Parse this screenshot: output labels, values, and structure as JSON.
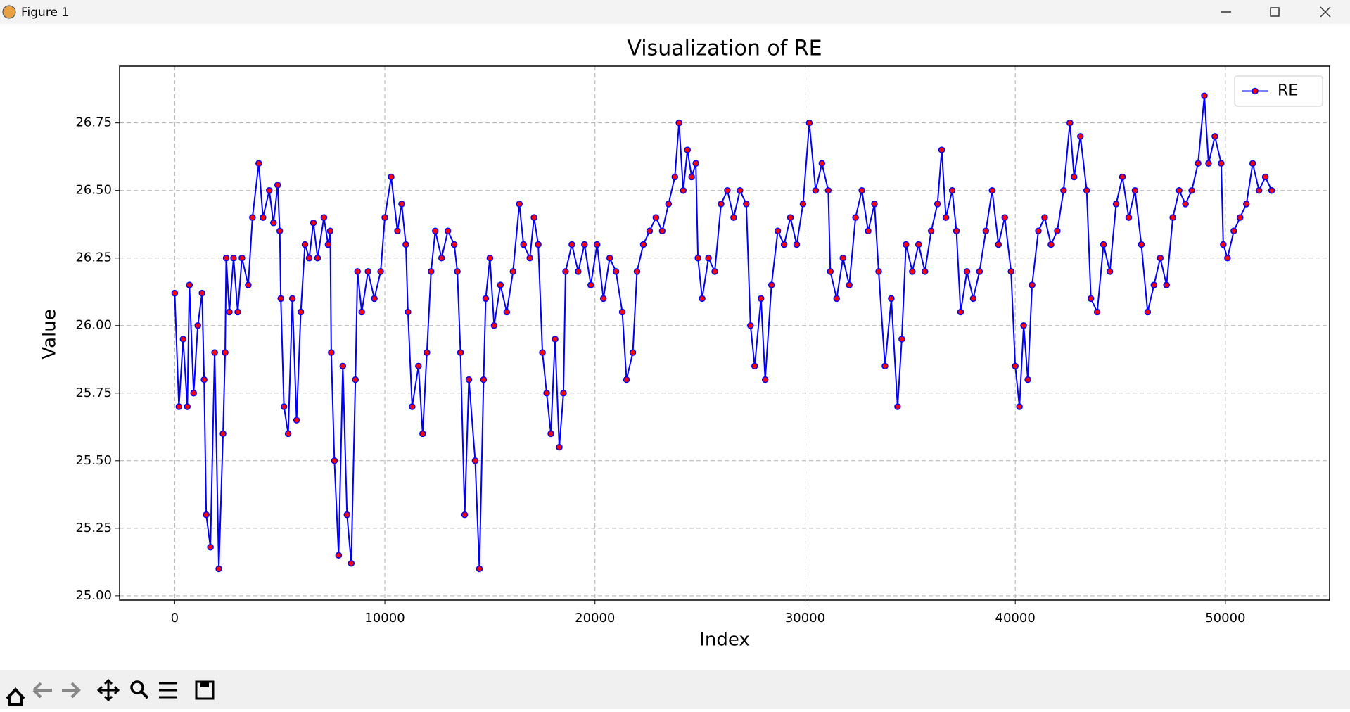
{
  "window": {
    "title": "Figure 1"
  },
  "chart_data": {
    "type": "line",
    "title": "Visualization of RE",
    "x_label": "Index",
    "y_label": "Value",
    "x": [
      0,
      200,
      400,
      600,
      700,
      900,
      1100,
      1300,
      1400,
      1500,
      1700,
      1900,
      2100,
      2300,
      2400,
      2450,
      2600,
      2800,
      3000,
      3200,
      3500,
      3700,
      4000,
      4200,
      4500,
      4700,
      4900,
      5000,
      5050,
      5200,
      5400,
      5600,
      5800,
      6000,
      6200,
      6400,
      6600,
      6800,
      7100,
      7300,
      7400,
      7450,
      7600,
      7800,
      8000,
      8200,
      8400,
      8600,
      8700,
      8900,
      9200,
      9500,
      9800,
      10000,
      10300,
      10600,
      10800,
      11000,
      11100,
      11300,
      11600,
      11800,
      12000,
      12200,
      12400,
      12700,
      13000,
      13300,
      13450,
      13600,
      13800,
      14000,
      14300,
      14500,
      14700,
      14800,
      15000,
      15200,
      15500,
      15800,
      16100,
      16400,
      16600,
      16900,
      17100,
      17300,
      17500,
      17700,
      17900,
      18100,
      18300,
      18500,
      18600,
      18900,
      19200,
      19500,
      19800,
      20100,
      20400,
      20700,
      21000,
      21300,
      21500,
      21800,
      22000,
      22300,
      22600,
      22900,
      23200,
      23500,
      23800,
      24000,
      24200,
      24400,
      24600,
      24800,
      24900,
      25100,
      25400,
      25700,
      26000,
      26300,
      26600,
      26900,
      27200,
      27400,
      27600,
      27900,
      28100,
      28400,
      28700,
      29000,
      29300,
      29600,
      29900,
      30200,
      30500,
      30800,
      31100,
      31200,
      31500,
      31800,
      32100,
      32400,
      32700,
      33000,
      33300,
      33500,
      33800,
      34100,
      34400,
      34600,
      34800,
      35100,
      35400,
      35700,
      36000,
      36300,
      36500,
      36700,
      37000,
      37200,
      37400,
      37700,
      38000,
      38300,
      38600,
      38900,
      39200,
      39500,
      39800,
      40000,
      40200,
      40400,
      40600,
      40800,
      41100,
      41400,
      41700,
      42000,
      42300,
      42600,
      42800,
      43100,
      43400,
      43600,
      43900,
      44200,
      44500,
      44800,
      45100,
      45400,
      45700,
      46000,
      46300,
      46600,
      46900,
      47200,
      47500,
      47800,
      48100,
      48400,
      48700,
      49000,
      49200,
      49500,
      49800,
      49900,
      50100,
      50400,
      50700,
      51000,
      51300,
      51600,
      51900,
      52200
    ],
    "series": [
      {
        "name": "RE",
        "color": "#0000ff",
        "marker_color": "#ff0000",
        "values": [
          26.12,
          25.7,
          25.95,
          25.7,
          26.15,
          25.75,
          26.0,
          26.12,
          25.8,
          25.3,
          25.18,
          25.9,
          25.1,
          25.6,
          25.9,
          26.25,
          26.05,
          26.25,
          26.05,
          26.25,
          26.15,
          26.4,
          26.6,
          26.4,
          26.5,
          26.38,
          26.52,
          26.35,
          26.1,
          25.7,
          25.6,
          26.1,
          25.65,
          26.05,
          26.3,
          26.25,
          26.38,
          26.25,
          26.4,
          26.3,
          26.35,
          25.9,
          25.5,
          25.15,
          25.85,
          25.3,
          25.12,
          25.8,
          26.2,
          26.05,
          26.2,
          26.1,
          26.2,
          26.4,
          26.55,
          26.35,
          26.45,
          26.3,
          26.05,
          25.7,
          25.85,
          25.6,
          25.9,
          26.2,
          26.35,
          26.25,
          26.35,
          26.3,
          26.2,
          25.9,
          25.3,
          25.8,
          25.5,
          25.1,
          25.8,
          26.1,
          26.25,
          26.0,
          26.15,
          26.05,
          26.2,
          26.45,
          26.3,
          26.25,
          26.4,
          26.3,
          25.9,
          25.75,
          25.6,
          25.95,
          25.55,
          25.75,
          26.2,
          26.3,
          26.2,
          26.3,
          26.15,
          26.3,
          26.1,
          26.25,
          26.2,
          26.05,
          25.8,
          25.9,
          26.2,
          26.3,
          26.35,
          26.4,
          26.35,
          26.45,
          26.55,
          26.75,
          26.5,
          26.65,
          26.55,
          26.6,
          26.25,
          26.1,
          26.25,
          26.2,
          26.45,
          26.5,
          26.4,
          26.5,
          26.45,
          26.0,
          25.85,
          26.1,
          25.8,
          26.15,
          26.35,
          26.3,
          26.4,
          26.3,
          26.45,
          26.75,
          26.5,
          26.6,
          26.5,
          26.2,
          26.1,
          26.25,
          26.15,
          26.4,
          26.5,
          26.35,
          26.45,
          26.2,
          25.85,
          26.1,
          25.7,
          25.95,
          26.3,
          26.2,
          26.3,
          26.2,
          26.35,
          26.45,
          26.65,
          26.4,
          26.5,
          26.35,
          26.05,
          26.2,
          26.1,
          26.2,
          26.35,
          26.5,
          26.3,
          26.4,
          26.2,
          25.85,
          25.7,
          26.0,
          25.8,
          26.15,
          26.35,
          26.4,
          26.3,
          26.35,
          26.5,
          26.75,
          26.55,
          26.7,
          26.5,
          26.1,
          26.05,
          26.3,
          26.2,
          26.45,
          26.55,
          26.4,
          26.5,
          26.3,
          26.05,
          26.15,
          26.25,
          26.15,
          26.4,
          26.5,
          26.45,
          26.5,
          26.6,
          26.85,
          26.6,
          26.7,
          26.6,
          26.3,
          26.25,
          26.35,
          26.4,
          26.45,
          26.6,
          26.5,
          26.55,
          26.5
        ]
      }
    ],
    "xlim": [
      -2623,
      54959
    ],
    "ylim": [
      24.984,
      26.96
    ],
    "xticks": [
      0,
      10000,
      20000,
      30000,
      40000,
      50000
    ],
    "yticks": [
      {
        "value": 25,
        "label": "25.00"
      },
      25.25,
      {
        "value": 25.5,
        "label": "25.50"
      },
      25.75,
      {
        "value": 26,
        "label": "26.00"
      },
      26.25,
      {
        "value": 26.5,
        "label": "26.50"
      },
      26.75
    ],
    "grid": true,
    "legend": "upper right"
  }
}
